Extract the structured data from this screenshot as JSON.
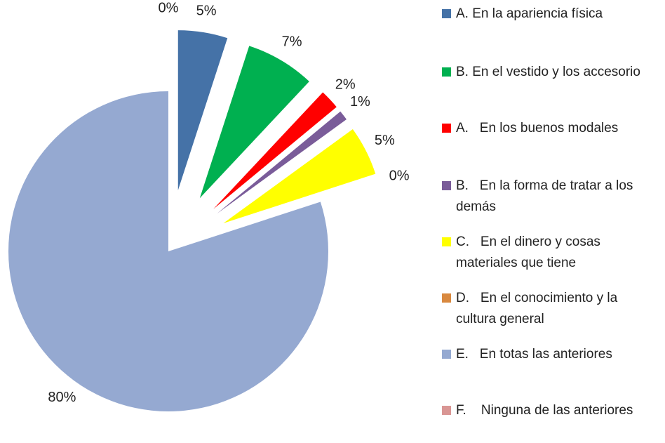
{
  "chart_data": {
    "type": "pie",
    "categories": [
      "A. En la apariencia física",
      "B. En el vestido y los accesorio",
      "A.   En los buenos modales",
      "B.   En la forma de tratar a los demás",
      "C.   En el dinero y cosas materiales que tiene",
      "D.   En el conocimiento y la cultura general",
      "E.   En totas las anteriores",
      "F.    Ninguna de las anteriores"
    ],
    "values": [
      5,
      7,
      2,
      1,
      5,
      0,
      80,
      0
    ],
    "value_labels": [
      "5%",
      "7%",
      "2%",
      "1%",
      "5%",
      "0%",
      "80%",
      "0%"
    ],
    "colors": [
      "#4572a7",
      "#00b050",
      "#ff0000",
      "#7a5c99",
      "#ffff00",
      "#d9893f",
      "#95a9d1",
      "#d99694"
    ],
    "legend": "right"
  }
}
